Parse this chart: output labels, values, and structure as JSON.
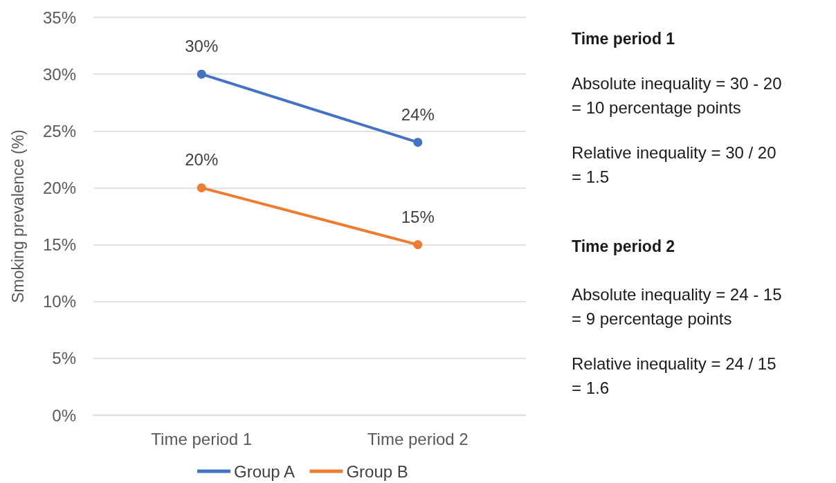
{
  "chart_data": {
    "type": "line",
    "ylabel": "Smoking prevalence (%)",
    "categories": [
      "Time period 1",
      "Time period 2"
    ],
    "series": [
      {
        "name": "Group A",
        "color": "#4472c4",
        "values": [
          30,
          24
        ],
        "value_labels": [
          "30%",
          "24%"
        ]
      },
      {
        "name": "Group B",
        "color": "#ed7d31",
        "values": [
          20,
          15
        ],
        "value_labels": [
          "20%",
          "15%"
        ]
      }
    ],
    "ylim": [
      0,
      35
    ],
    "yticks": [
      {
        "value": 0,
        "label": "0%"
      },
      {
        "value": 5,
        "label": "5%"
      },
      {
        "value": 10,
        "label": "10%"
      },
      {
        "value": 15,
        "label": "15%"
      },
      {
        "value": 20,
        "label": "20%"
      },
      {
        "value": 25,
        "label": "25%"
      },
      {
        "value": 30,
        "label": "30%"
      },
      {
        "value": 35,
        "label": "35%"
      }
    ],
    "grid": "y",
    "legend": "bottom",
    "marker": "circle",
    "line_style": "solid",
    "annotations": [
      "Time period 1",
      "Absolute inequality = 30 - 20\n= 10 percentage points",
      "Relative inequality = 30 / 20\n= 1.5",
      "Time period 2",
      "Absolute inequality = 24 - 15\n= 9 percentage points",
      "Relative inequality = 24 / 15\n= 1.6"
    ]
  }
}
